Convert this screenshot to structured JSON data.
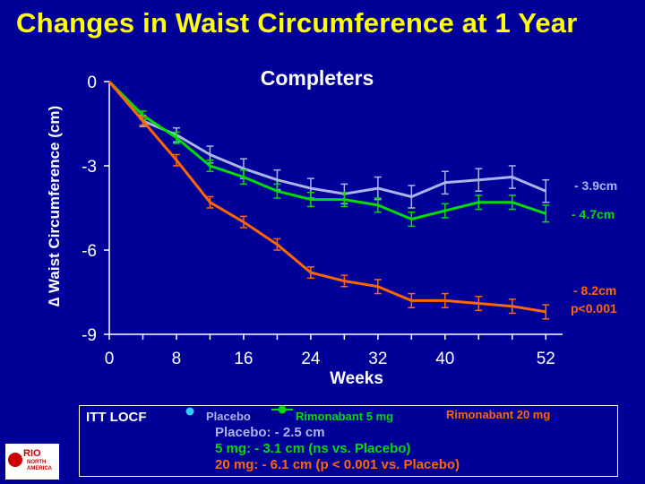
{
  "title": "Changes in Waist Circumference at 1 Year",
  "colors": {
    "background": "#000099",
    "title": "#ffff00",
    "placebo": "#aab4e6",
    "rimo5": "#00dd00",
    "rimo20": "#ff6600",
    "placebo_dot": "#33ccff"
  },
  "chart_data": {
    "type": "line",
    "title": "Completers",
    "xlabel": "Weeks",
    "ylabel": "∆ Waist Circumference (cm)",
    "xlim": [
      0,
      54
    ],
    "ylim": [
      -9,
      0
    ],
    "xticks": [
      0,
      8,
      16,
      24,
      32,
      40,
      52
    ],
    "yticks": [
      0,
      -3,
      -6,
      -9
    ],
    "series": [
      {
        "key": "placebo",
        "x": [
          0,
          4,
          8,
          12,
          16,
          20,
          24,
          28,
          32,
          36,
          40,
          44,
          48,
          52
        ],
        "y": [
          0,
          -1.4,
          -1.9,
          -2.6,
          -3.1,
          -3.5,
          -3.8,
          -4.0,
          -3.8,
          -4.1,
          -3.6,
          -3.5,
          -3.4,
          -3.9
        ],
        "err": [
          0,
          0.2,
          0.25,
          0.3,
          0.35,
          0.35,
          0.35,
          0.35,
          0.4,
          0.4,
          0.4,
          0.4,
          0.4,
          0.4
        ],
        "end_label": "- 3.9cm"
      },
      {
        "key": "rimo5",
        "x": [
          0,
          4,
          8,
          12,
          16,
          20,
          24,
          28,
          32,
          36,
          40,
          44,
          48,
          52
        ],
        "y": [
          0,
          -1.2,
          -2.0,
          -3.0,
          -3.4,
          -3.9,
          -4.2,
          -4.2,
          -4.4,
          -4.9,
          -4.6,
          -4.3,
          -4.3,
          -4.7
        ],
        "err": [
          0,
          0.15,
          0.2,
          0.2,
          0.25,
          0.25,
          0.25,
          0.25,
          0.25,
          0.25,
          0.25,
          0.25,
          0.25,
          0.3
        ],
        "end_label": "- 4.7cm"
      },
      {
        "key": "rimo20",
        "x": [
          0,
          4,
          8,
          12,
          16,
          20,
          24,
          28,
          32,
          36,
          40,
          44,
          48,
          52
        ],
        "y": [
          0,
          -1.4,
          -2.8,
          -4.3,
          -5.0,
          -5.8,
          -6.8,
          -7.1,
          -7.3,
          -7.8,
          -7.8,
          -7.9,
          -8.0,
          -8.2
        ],
        "err": [
          0,
          0.15,
          0.2,
          0.2,
          0.2,
          0.2,
          0.2,
          0.2,
          0.25,
          0.25,
          0.25,
          0.25,
          0.25,
          0.25
        ],
        "end_label": "- 8.2cm",
        "end_label_2": "p<0.001"
      }
    ]
  },
  "legend": {
    "itt": "ITT  LOCF",
    "placebo": "Placebo",
    "rimo5": "Rimonabant 5 mg",
    "rimo20": "Rimonabant 20 mg",
    "line_placebo": "Placebo: - 2.5 cm",
    "line_5mg": "5 mg: - 3.1 cm (ns vs. Placebo)",
    "line_20mg": "20 mg: - 6.1 cm (p < 0.001 vs. Placebo)"
  },
  "logo": {
    "name": "RIO",
    "sub1": "NORTH",
    "sub2": "AMERICA"
  }
}
